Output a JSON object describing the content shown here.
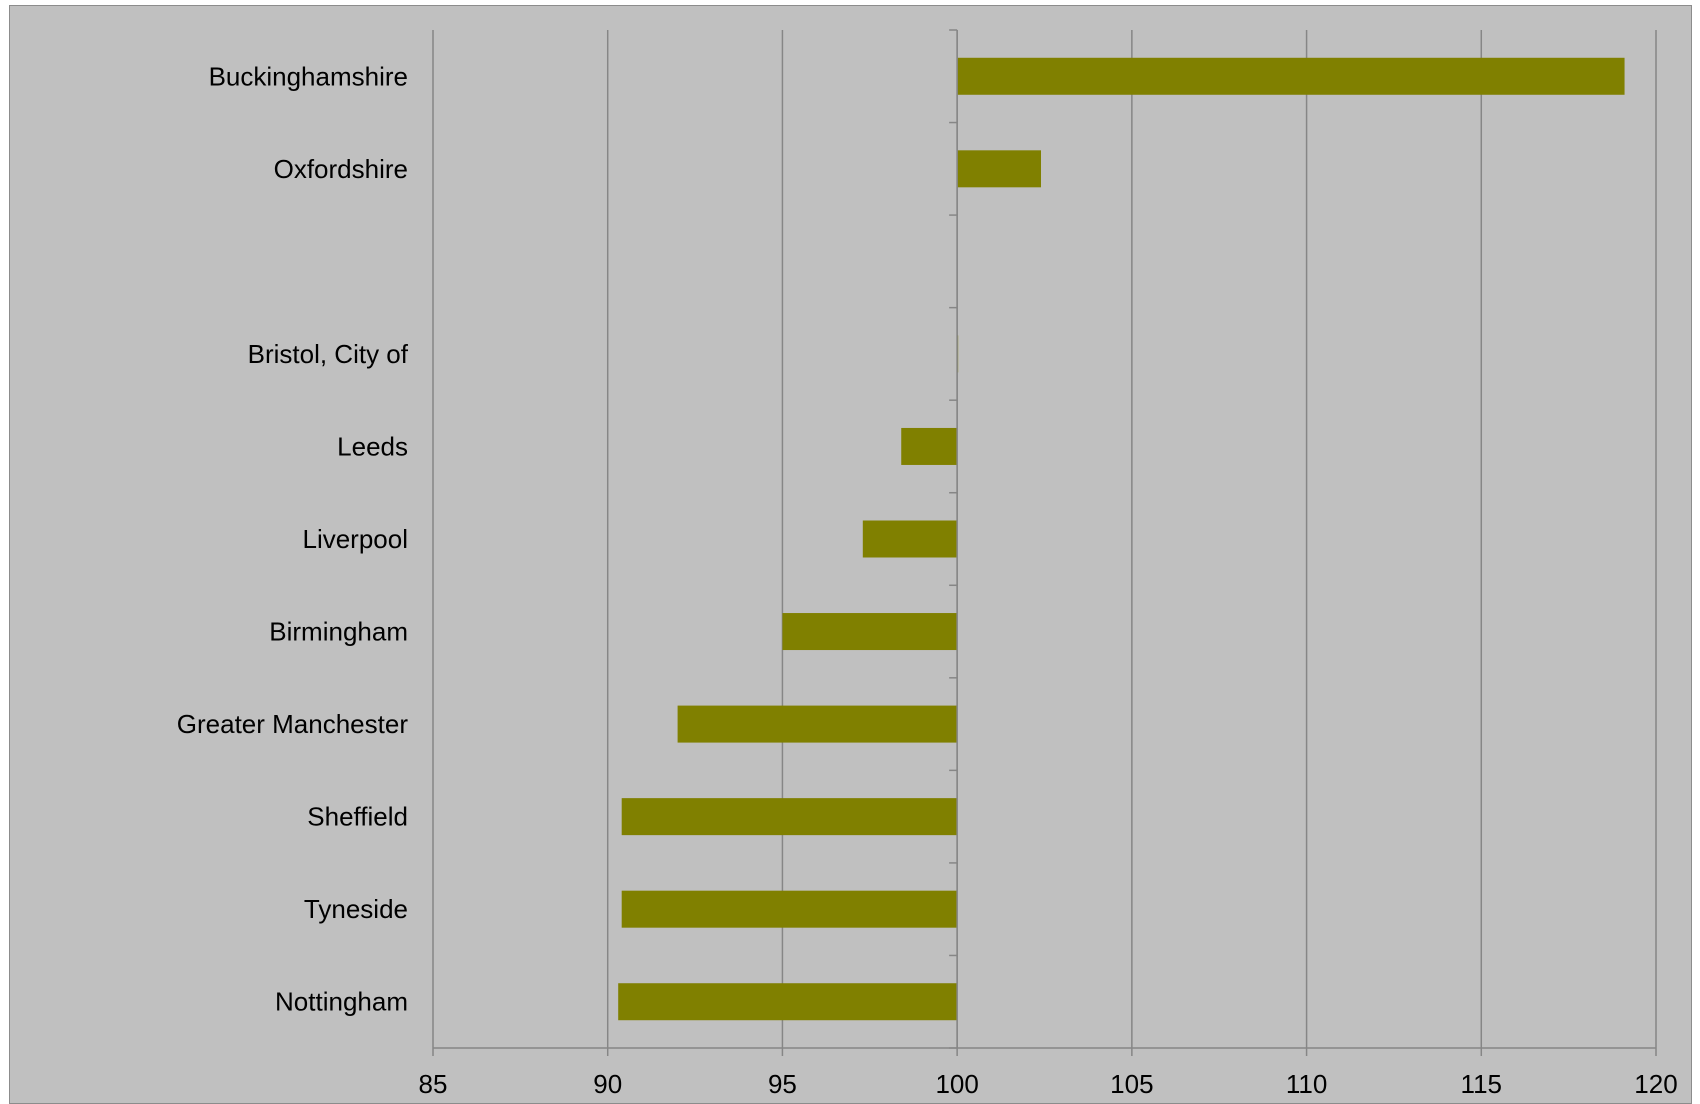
{
  "chart_data": {
    "type": "bar",
    "orientation": "horizontal",
    "title": "",
    "xlabel": "",
    "ylabel": "",
    "baseline": 100,
    "xlim": [
      85,
      120
    ],
    "xticks": [
      "85",
      "90",
      "95",
      "100",
      "105",
      "110",
      "115",
      "120"
    ],
    "grid": "vertical",
    "legend": "none",
    "categories": [
      "Buckinghamshire",
      "Oxfordshire",
      "",
      "Bristol, City of",
      "Leeds",
      "Liverpool",
      "Birmingham",
      "Greater Manchester",
      "Sheffield",
      "Tyneside",
      "Nottingham"
    ],
    "values": [
      119.1,
      102.4,
      null,
      100.0,
      98.4,
      97.3,
      95.0,
      92.0,
      90.4,
      90.4,
      90.3
    ],
    "bar_color": "#808000",
    "background_color": "#c0c0c0"
  }
}
